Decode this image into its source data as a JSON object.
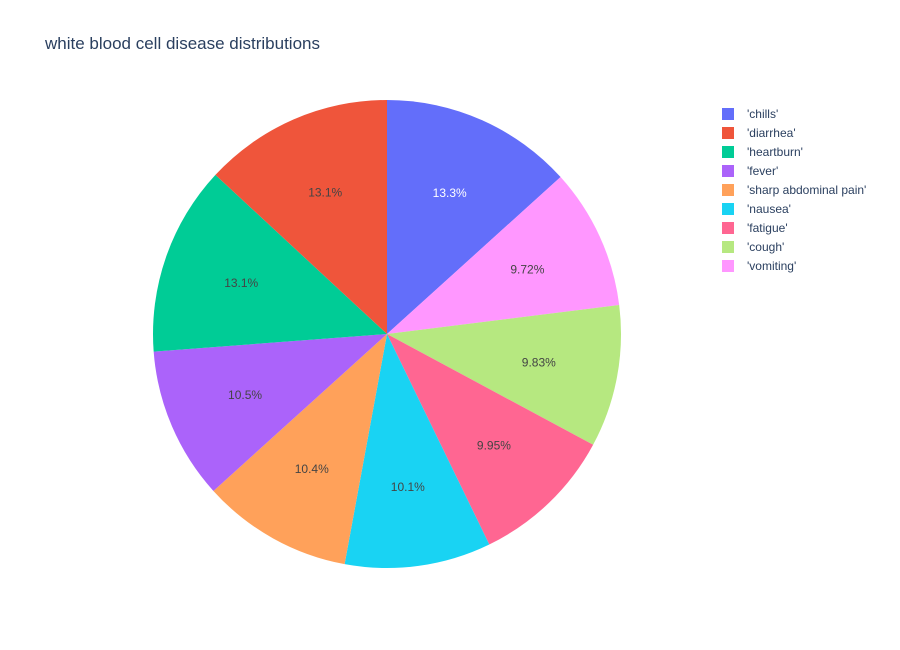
{
  "chart_data": {
    "type": "pie",
    "title": "white blood cell disease distributions",
    "legend_position": "top-right",
    "direction": "clockwise",
    "slices": [
      {
        "label": "'chills'",
        "percent": 13.3,
        "display": "13.3%",
        "color": "#636efa",
        "text_color": "#ffffff"
      },
      {
        "label": "'vomiting'",
        "percent": 9.72,
        "display": "9.72%",
        "color": "#ff97ff",
        "text_color": "#444444"
      },
      {
        "label": "'cough'",
        "percent": 9.83,
        "display": "9.83%",
        "color": "#b6e880",
        "text_color": "#444444"
      },
      {
        "label": "'fatigue'",
        "percent": 9.95,
        "display": "9.95%",
        "color": "#ff6692",
        "text_color": "#444444"
      },
      {
        "label": "'nausea'",
        "percent": 10.1,
        "display": "10.1%",
        "color": "#19d3f3",
        "text_color": "#444444"
      },
      {
        "label": "'sharp abdominal pain'",
        "percent": 10.4,
        "display": "10.4%",
        "color": "#ffa15a",
        "text_color": "#444444"
      },
      {
        "label": "'fever'",
        "percent": 10.5,
        "display": "10.5%",
        "color": "#ab63fa",
        "text_color": "#444444"
      },
      {
        "label": "'heartburn'",
        "percent": 13.1,
        "display": "13.1%",
        "color": "#00cc96",
        "text_color": "#444444"
      },
      {
        "label": "'diarrhea'",
        "percent": 13.1,
        "display": "13.1%",
        "color": "#ef553b",
        "text_color": "#444444"
      }
    ],
    "legend_order": [
      "'chills'",
      "'diarrhea'",
      "'heartburn'",
      "'fever'",
      "'sharp abdominal pain'",
      "'nausea'",
      "'fatigue'",
      "'cough'",
      "'vomiting'"
    ]
  }
}
